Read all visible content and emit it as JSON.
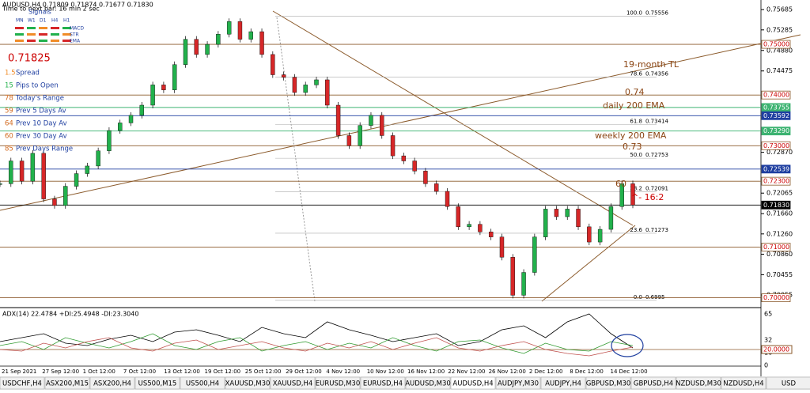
{
  "header": {
    "symbol": "AUDUSD,H4 0.71809 0.71874 0.71677 0.71830",
    "timer": "Time to next bar: 16 min 2 sec",
    "signals": "Signals",
    "timeframes": [
      "MN",
      "W1",
      "D1",
      "H4",
      "H1"
    ],
    "indicators": [
      "MACD",
      "STR",
      "EMA"
    ]
  },
  "info_panel": {
    "price": "0.71825",
    "rows": [
      {
        "value": "1.5",
        "label": "Spread"
      },
      {
        "value": "15",
        "label": "Pips to Open"
      },
      {
        "value": "78",
        "label": "Today's Range"
      },
      {
        "value": "59",
        "label": "Prev 5 Days Av"
      },
      {
        "value": "64",
        "label": "Prev 10 Day Av"
      },
      {
        "value": "60",
        "label": "Prev 30 Day Av"
      },
      {
        "value": "85",
        "label": "Prev Days Range"
      }
    ]
  },
  "price_axis": {
    "ylim": [
      0.699,
      0.7575
    ],
    "yticks": [
      0.75685,
      0.75285,
      {
        "value": 0.7488,
        "label": "0.74880"
      },
      0.74475,
      {
        "value": 0.7287,
        "label": "0.72870"
      },
      0.72065,
      {
        "value": 0.7166,
        "label": "0.71660"
      },
      {
        "value": 0.7126,
        "label": "0.71260"
      },
      {
        "value": 0.7086,
        "label": "0.70860"
      },
      0.70455,
      0.70055
    ],
    "levels": [
      {
        "value": 0.75,
        "label": "0.75000",
        "color": "#8b5a2b",
        "bg": "#fff",
        "fg": "#c00"
      },
      {
        "value": 0.74,
        "label": "0.74000",
        "color": "#8b5a2b",
        "bg": "#fff",
        "fg": "#c00"
      },
      {
        "value": 0.73755,
        "label": "0.73755",
        "color": "#3cb371",
        "bg": "#3cb371",
        "fg": "#fff"
      },
      {
        "value": 0.73592,
        "label": "0.73592",
        "color": "#1f3fa0",
        "bg": "#1f3fa0",
        "fg": "#fff"
      },
      {
        "value": 0.7329,
        "label": "0.73290",
        "color": "#3cb371",
        "bg": "#3cb371",
        "fg": "#fff"
      },
      {
        "value": 0.73,
        "label": "0.73000",
        "color": "#8b5a2b",
        "bg": "#fff",
        "fg": "#c00"
      },
      {
        "value": 0.72539,
        "label": "0.72539",
        "color": "#1f3fa0",
        "bg": "#1f3fa0",
        "fg": "#fff"
      },
      {
        "value": 0.723,
        "label": "0.72300",
        "color": "#8b5a2b",
        "bg": "#fff",
        "fg": "#c00"
      },
      {
        "value": 0.7183,
        "label": "0.71830",
        "color": "#000",
        "bg": "#000",
        "fg": "#fff"
      },
      {
        "value": 0.71,
        "label": "0.71000",
        "color": "#8b5a2b",
        "bg": "#fff",
        "fg": "#c00"
      },
      {
        "value": 0.7,
        "label": "0.70000",
        "color": "#8b5a2b",
        "bg": "#fff",
        "fg": "#c00"
      }
    ]
  },
  "fib": [
    {
      "label": "100.0",
      "value": 0.75556
    },
    {
      "label": "78.6",
      "value": 0.74356
    },
    {
      "label": "61.8",
      "value": 0.73414
    },
    {
      "label": "50.0",
      "value": 0.72753
    },
    {
      "label": "38.2",
      "value": 0.72091
    },
    {
      "label": "23.6",
      "value": 0.71273
    },
    {
      "label": "0.0",
      "value": 0.6995
    }
  ],
  "annotations": [
    {
      "text": "19-month TL",
      "x": 788,
      "y": 82
    },
    {
      "text": "0.74",
      "x": 790,
      "y": 117
    },
    {
      "text": "daily 200 EMA",
      "x": 762,
      "y": 134
    },
    {
      "text": "weekly 200 EMA",
      "x": 752,
      "y": 172
    },
    {
      "text": "0.73",
      "x": 787,
      "y": 186
    },
    {
      "text": "60",
      "x": 778,
      "y": 233
    },
    {
      "text": "^- 16:2",
      "x": 798,
      "y": 250
    }
  ],
  "prices": {
    "values": [
      0.7225,
      0.727,
      0.723,
      0.7285,
      0.7195,
      0.7182,
      0.722,
      0.7245,
      0.726,
      0.729,
      0.733,
      0.7345,
      0.736,
      0.738,
      0.742,
      0.741,
      0.746,
      0.751,
      0.748,
      0.75,
      0.752,
      0.7545,
      0.751,
      0.7525,
      0.748,
      0.744,
      0.7435,
      0.7405,
      0.742,
      0.743,
      0.738,
      0.732,
      0.73,
      0.734,
      0.736,
      0.732,
      0.728,
      0.727,
      0.725,
      0.7225,
      0.721,
      0.718,
      0.714,
      0.7145,
      0.713,
      0.712,
      0.708,
      0.7005,
      0.705,
      0.712,
      0.7175,
      0.716,
      0.7175,
      0.714,
      0.711,
      0.7135,
      0.718,
      0.7225,
      0.7183
    ]
  },
  "adx": {
    "label": "ADX(14) 22.4784 +DI:25.4948 -DI:23.3040",
    "ylim": [
      0,
      70
    ],
    "yticks": [
      65,
      32,
      16,
      0
    ],
    "level": {
      "value": 20,
      "label": "20.0000"
    },
    "series": [
      {
        "color": "#000",
        "values": [
          30,
          35,
          40,
          28,
          25,
          33,
          38,
          30,
          42,
          45,
          38,
          30,
          48,
          40,
          35,
          55,
          45,
          38,
          30,
          35,
          40,
          25,
          30,
          45,
          50,
          35,
          55,
          65,
          40,
          22
        ]
      },
      {
        "color": "#2e9a2e",
        "values": [
          25,
          30,
          20,
          35,
          28,
          22,
          30,
          40,
          25,
          20,
          30,
          35,
          18,
          25,
          30,
          20,
          28,
          22,
          35,
          25,
          18,
          30,
          32,
          22,
          15,
          28,
          20,
          18,
          30,
          25
        ]
      },
      {
        "color": "#c0504d",
        "values": [
          20,
          18,
          28,
          22,
          30,
          35,
          22,
          18,
          28,
          32,
          20,
          25,
          30,
          22,
          18,
          28,
          22,
          30,
          20,
          28,
          35,
          22,
          18,
          25,
          30,
          20,
          15,
          12,
          18,
          23
        ]
      }
    ]
  },
  "time_axis": [
    "21 Sep 2021",
    "27 Sep 12:00",
    "1 Oct 12:00",
    "7 Oct 12:00",
    "13 Oct 12:00",
    "19 Oct 12:00",
    "25 Oct 12:00",
    "29 Oct 12:00",
    "4 Nov 12:00",
    "10 Nov 12:00",
    "16 Nov 12:00",
    "22 Nov 12:00",
    "26 Nov 12:00",
    "2 Dec 12:00",
    "8 Dec 12:00",
    "14 Dec 12:00"
  ],
  "tabs": [
    "USDCHF,H4",
    "ASX200,M15",
    "ASX200,H4",
    "US500,M15",
    "US500,H4",
    "XAUUSD,M30",
    "XAUUSD,H4",
    "EURUSD,M30",
    "EURUSD,H4",
    "AUDUSD,M30",
    "AUDUSD,H4",
    "AUDJPY,M30",
    "AUDJPY,H4",
    "GBPUSD,M30",
    "GBPUSD,H4",
    "NZDUSD,M30",
    "NZDUSD,H4",
    "USD"
  ],
  "active_tab": "AUDUSD,H4"
}
